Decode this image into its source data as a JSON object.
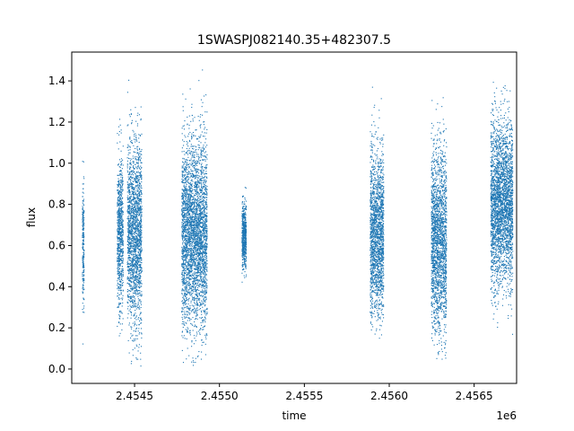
{
  "chart_data": {
    "type": "scatter",
    "title": "1SWASPJ082140.35+482307.5",
    "xlabel": "time",
    "ylabel": "flux",
    "x_offset_label": "1e6",
    "x_ticks": [
      "2.4545",
      "2.4550",
      "2.4555",
      "2.4560",
      "2.4565"
    ],
    "y_ticks": [
      "0.0",
      "0.2",
      "0.4",
      "0.6",
      "0.8",
      "1.0",
      "1.2",
      "1.4"
    ],
    "xlim": [
      2454130,
      2456750
    ],
    "ylim": [
      -0.07,
      1.54
    ],
    "grid": false,
    "marker_color": "#1f77b4",
    "series": [
      {
        "clusters": [
          {
            "x_range": [
              2454190,
              2454200
            ],
            "y_range": [
              0.12,
              1.12
            ],
            "center": 0.62
          },
          {
            "x_range": [
              2454395,
              2454430
            ],
            "y_range": [
              0.05,
              1.3
            ],
            "center": 0.66
          },
          {
            "x_range": [
              2454455,
              2454540
            ],
            "y_range": [
              0.0,
              1.46
            ],
            "center": 0.66
          },
          {
            "x_range": [
              2454775,
              2454925
            ],
            "y_range": [
              0.02,
              1.48
            ],
            "center": 0.66
          },
          {
            "x_range": [
              2455130,
              2455155
            ],
            "y_range": [
              0.4,
              0.93
            ],
            "center": 0.65
          },
          {
            "x_range": [
              2455885,
              2455965
            ],
            "y_range": [
              0.15,
              1.48
            ],
            "center": 0.65
          },
          {
            "x_range": [
              2456245,
              2456335
            ],
            "y_range": [
              0.05,
              1.48
            ],
            "center": 0.62
          },
          {
            "x_range": [
              2456595,
              2456725
            ],
            "y_range": [
              0.15,
              1.42
            ],
            "center": 0.8
          }
        ]
      }
    ]
  }
}
